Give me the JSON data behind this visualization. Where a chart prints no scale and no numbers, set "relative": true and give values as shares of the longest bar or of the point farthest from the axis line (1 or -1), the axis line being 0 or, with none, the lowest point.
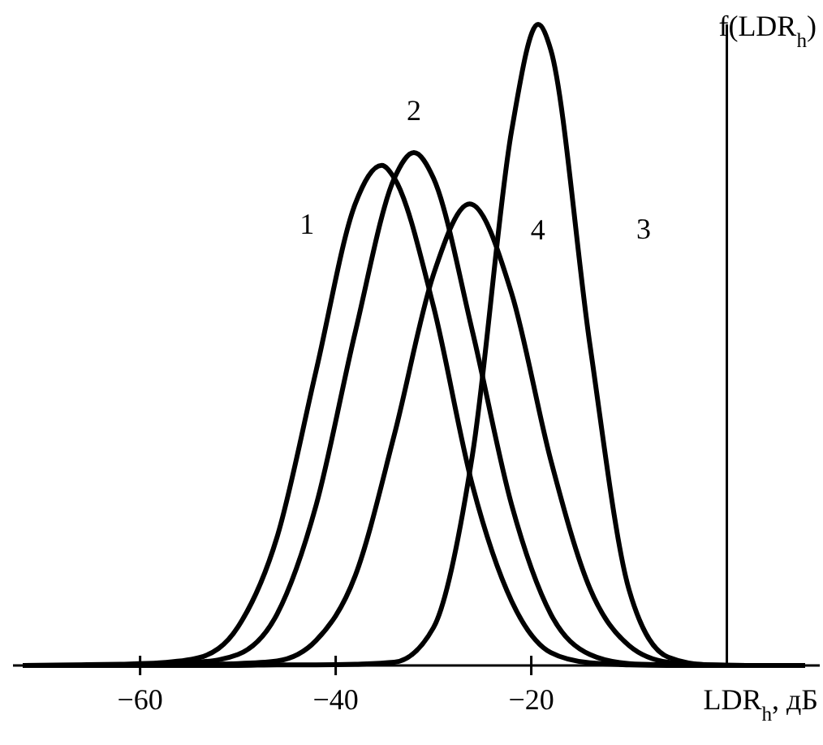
{
  "chart_data": {
    "type": "line",
    "relative": true,
    "xlabel": "LDR$_{h}$, дБ",
    "ylabel": "f(LDR$_{h}$)",
    "xlim": [
      -73,
      9.5
    ],
    "xticks": [
      {
        "value": -60,
        "label": "−60"
      },
      {
        "value": -40,
        "label": "−40"
      },
      {
        "value": -20,
        "label": "−20"
      }
    ],
    "line_style": "solid",
    "series": [
      {
        "name": "1",
        "color": "#000000",
        "x": [
          -72,
          -66,
          -62,
          -58,
          -54,
          -50,
          -46,
          -42,
          -38,
          -35.3,
          -34,
          -30,
          -26,
          -22,
          -18,
          -14,
          -10,
          -6,
          -2,
          2,
          8
        ],
        "values": [
          0,
          0.001,
          0.002,
          0.004,
          0.012,
          0.06,
          0.2,
          0.46,
          0.72,
          0.78,
          0.76,
          0.56,
          0.28,
          0.1,
          0.02,
          0.004,
          0.001,
          0,
          0,
          0,
          0
        ]
      },
      {
        "name": "2",
        "color": "#000000",
        "x": [
          -72,
          -66,
          -62,
          -58,
          -54,
          -50,
          -46,
          -42,
          -38,
          -34,
          -32,
          -30,
          -26,
          -22,
          -18,
          -14,
          -10,
          -6,
          -2,
          2,
          8
        ],
        "values": [
          0,
          0,
          0.001,
          0.002,
          0.005,
          0.017,
          0.08,
          0.25,
          0.52,
          0.76,
          0.8,
          0.76,
          0.52,
          0.25,
          0.08,
          0.017,
          0.003,
          0.001,
          0,
          0,
          0
        ]
      },
      {
        "name": "3",
        "color": "#000000",
        "x": [
          -72,
          -50,
          -46,
          -42,
          -38,
          -34,
          -30,
          -26,
          -22,
          -19.3,
          -18,
          -14,
          -10,
          -6,
          -2,
          2,
          8
        ],
        "values": [
          0,
          0,
          0.001,
          0.001,
          0.002,
          0.005,
          0.059,
          0.33,
          0.835,
          1,
          0.96,
          0.5,
          0.118,
          0.013,
          0.001,
          0,
          0
        ]
      },
      {
        "name": "4",
        "color": "#000000",
        "x": [
          -72,
          -58,
          -54,
          -50,
          -46,
          -42,
          -38,
          -34,
          -30,
          -26.3,
          -22,
          -18,
          -14,
          -10,
          -6,
          -2,
          2,
          8
        ],
        "values": [
          0,
          0.001,
          0.002,
          0.003,
          0.007,
          0.039,
          0.14,
          0.36,
          0.61,
          0.72,
          0.58,
          0.32,
          0.12,
          0.031,
          0.005,
          0.001,
          0,
          0
        ]
      }
    ]
  }
}
